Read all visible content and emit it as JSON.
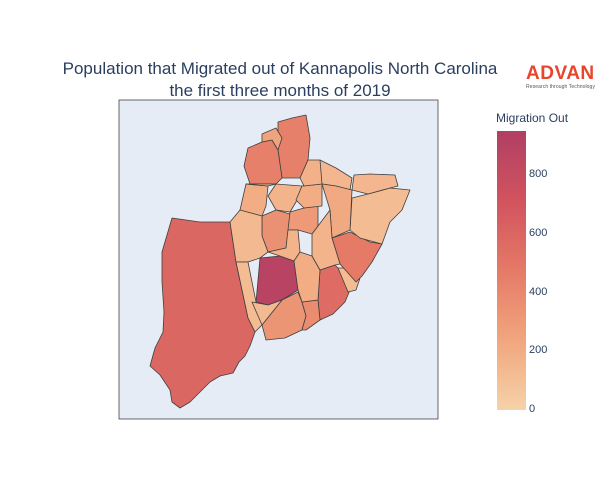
{
  "title": {
    "line1": "Population that Migrated out of Kannapolis North Carolina",
    "line2": "the first three months of 2019"
  },
  "logo": {
    "brand": "ADVAN",
    "tagline": "Research through Technology",
    "brand_color": "#e8452c"
  },
  "legend": {
    "title": "Migration Out",
    "ticks": [
      "0",
      "200",
      "400",
      "600",
      "800"
    ],
    "tick_values": [
      0,
      200,
      400,
      600,
      800
    ],
    "range": [
      0,
      950
    ],
    "colorscale": [
      "#f6d2a9",
      "#f1a67e",
      "#e57a67",
      "#d1535e",
      "#b13f64"
    ]
  },
  "map": {
    "background": "#e5ecf6",
    "region_values": [
      590,
      900,
      330,
      560,
      120,
      470,
      120,
      150,
      440,
      440,
      250,
      150,
      160,
      200,
      350,
      300,
      200,
      220,
      130,
      120,
      160,
      380,
      200,
      160,
      130,
      180,
      140
    ]
  }
}
